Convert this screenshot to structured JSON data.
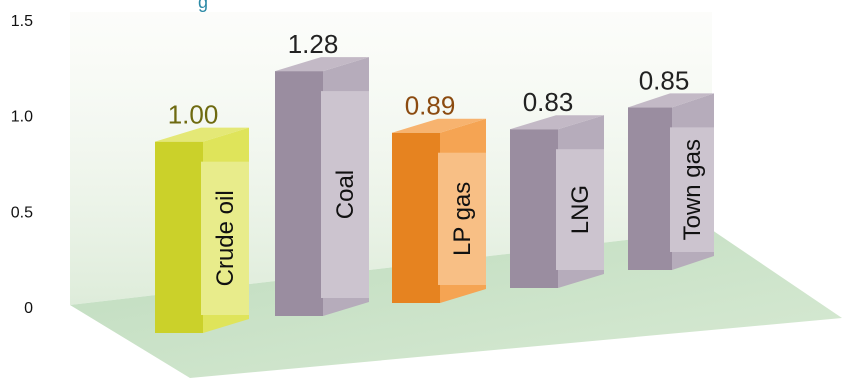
{
  "chart_data": {
    "type": "bar",
    "categories": [
      "Crude oil",
      "Coal",
      "LP gas",
      "LNG",
      "Town gas"
    ],
    "values": [
      1.0,
      1.28,
      0.89,
      0.83,
      0.85
    ],
    "value_labels": [
      "1.00",
      "1.28",
      "0.89",
      "0.83",
      "0.85"
    ],
    "yticks": [
      "0",
      "0.5",
      "1.0",
      "1.5"
    ],
    "ylim": [
      0,
      1.5
    ],
    "bar_colors": [
      "#d6dc2c",
      "#a294a8",
      "#f28a22",
      "#a294a8",
      "#a294a8"
    ],
    "value_label_colors": [
      "#6e6a10",
      "#222222",
      "#8b4b10",
      "#222222",
      "#222222"
    ],
    "legend": false,
    "grid": false
  }
}
